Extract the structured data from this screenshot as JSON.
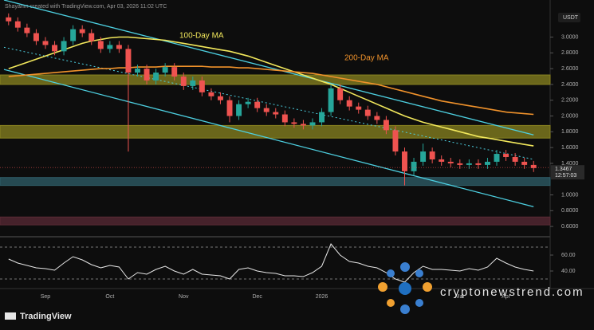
{
  "chart_data": {
    "type": "candlestick",
    "header": "Shayanm created with TradingView.com, Apr 03, 2026 11:02 UTC",
    "currency": "USDT",
    "categories": [
      null,
      null,
      null,
      null,
      "Sep",
      null,
      null,
      null,
      null,
      null,
      null,
      "Oct",
      null,
      null,
      null,
      null,
      null,
      null,
      null,
      "Nov",
      null,
      null,
      null,
      null,
      null,
      null,
      null,
      "Dec",
      null,
      null,
      null,
      null,
      null,
      null,
      "2026",
      null,
      null,
      null,
      null,
      null,
      null,
      null,
      null,
      null,
      null,
      null,
      null,
      null,
      null,
      "Mar",
      null,
      null,
      null,
      null,
      "Apr",
      null,
      null,
      null
    ],
    "open": [
      3.25,
      3.2,
      3.12,
      3.05,
      2.95,
      2.9,
      2.82,
      2.95,
      3.1,
      3.05,
      2.95,
      2.85,
      2.9,
      2.85,
      2.55,
      2.6,
      2.45,
      2.55,
      2.62,
      2.5,
      2.38,
      2.45,
      2.3,
      2.25,
      2.2,
      2.0,
      2.15,
      2.18,
      2.1,
      2.05,
      2.02,
      1.92,
      1.9,
      1.88,
      1.92,
      2.05,
      2.35,
      2.2,
      2.12,
      2.08,
      2.0,
      1.95,
      1.82,
      1.55,
      1.3,
      1.42,
      1.55,
      1.45,
      1.42,
      1.4,
      1.38,
      1.4,
      1.38,
      1.42,
      1.52,
      1.48,
      1.42,
      1.38
    ],
    "high": [
      3.3,
      3.25,
      3.17,
      3.1,
      3.0,
      2.95,
      3.0,
      3.15,
      3.15,
      3.1,
      3.0,
      2.95,
      2.95,
      2.9,
      2.65,
      2.65,
      2.6,
      2.67,
      2.67,
      2.55,
      2.5,
      2.5,
      2.35,
      2.3,
      2.25,
      2.2,
      2.23,
      2.23,
      2.15,
      2.1,
      2.07,
      1.97,
      1.95,
      1.97,
      2.1,
      2.4,
      2.4,
      2.25,
      2.17,
      2.13,
      2.05,
      2.0,
      1.87,
      1.6,
      1.47,
      1.65,
      1.6,
      1.5,
      1.47,
      1.45,
      1.45,
      1.45,
      1.47,
      1.57,
      1.57,
      1.53,
      1.47,
      1.43
    ],
    "low": [
      3.15,
      3.07,
      3.0,
      2.9,
      2.85,
      2.77,
      2.77,
      2.9,
      3.0,
      2.9,
      2.8,
      2.8,
      2.8,
      1.55,
      2.5,
      2.4,
      2.4,
      2.5,
      2.45,
      2.33,
      2.33,
      2.25,
      2.2,
      2.15,
      1.92,
      1.95,
      2.1,
      2.05,
      2.0,
      1.97,
      1.87,
      1.85,
      1.83,
      1.83,
      1.87,
      2.0,
      2.15,
      2.07,
      2.03,
      1.95,
      1.9,
      1.77,
      1.5,
      1.12,
      1.25,
      1.37,
      1.4,
      1.37,
      1.35,
      1.33,
      1.33,
      1.33,
      1.33,
      1.37,
      1.43,
      1.37,
      1.33,
      1.29
    ],
    "close": [
      3.2,
      3.12,
      3.05,
      2.95,
      2.9,
      2.82,
      2.95,
      3.1,
      3.05,
      2.95,
      2.85,
      2.9,
      2.85,
      2.55,
      2.6,
      2.45,
      2.55,
      2.62,
      2.5,
      2.38,
      2.45,
      2.3,
      2.25,
      2.2,
      2.0,
      2.15,
      2.18,
      2.1,
      2.05,
      2.02,
      1.92,
      1.9,
      1.88,
      1.92,
      2.05,
      2.35,
      2.2,
      2.12,
      2.08,
      2.0,
      1.95,
      1.82,
      1.55,
      1.3,
      1.42,
      1.55,
      1.45,
      1.42,
      1.4,
      1.38,
      1.4,
      1.38,
      1.42,
      1.52,
      1.48,
      1.42,
      1.38,
      1.34
    ],
    "up_color": "#26a69a",
    "down_color": "#ef5350",
    "ylim": [
      0.49,
      3.47
    ],
    "yticks": [
      {
        "value": 3.0,
        "label": "3.0000"
      },
      {
        "value": 2.8,
        "label": "2.8000"
      },
      {
        "value": 2.6,
        "label": "2.6000"
      },
      {
        "value": 2.4,
        "label": "2.4000"
      },
      {
        "value": 2.2,
        "label": "2.2000"
      },
      {
        "value": 2.0,
        "label": "2.0000"
      },
      {
        "value": 1.8,
        "label": "1.8000"
      },
      {
        "value": 1.6,
        "label": "1.6000"
      },
      {
        "value": 1.4,
        "label": "1.4000"
      },
      {
        "value": 1.0,
        "label": "1.0000"
      },
      {
        "value": 0.8,
        "label": "0.8000"
      },
      {
        "value": 0.6,
        "label": "0.6000"
      }
    ],
    "series": [
      {
        "name": "100-Day MA",
        "color": "#f2e85c",
        "values": [
          2.6,
          2.64,
          2.68,
          2.72,
          2.76,
          2.8,
          2.84,
          2.88,
          2.92,
          2.95,
          2.97,
          2.99,
          3.0,
          3.0,
          2.99,
          2.98,
          2.97,
          2.96,
          2.94,
          2.92,
          2.9,
          2.88,
          2.86,
          2.84,
          2.82,
          2.79,
          2.76,
          2.72,
          2.68,
          2.64,
          2.6,
          2.56,
          2.52,
          2.48,
          2.44,
          2.4,
          2.35,
          2.3,
          2.25,
          2.2,
          2.15,
          2.1,
          2.05,
          2.0,
          1.96,
          1.92,
          1.89,
          1.86,
          1.83,
          1.8,
          1.77,
          1.74,
          1.72,
          1.7,
          1.68,
          1.66,
          1.64,
          1.62
        ]
      },
      {
        "name": "200-Day MA",
        "color": "#f0922b",
        "values": [
          2.5,
          2.51,
          2.52,
          2.53,
          2.54,
          2.55,
          2.56,
          2.57,
          2.58,
          2.59,
          2.6,
          2.6,
          2.61,
          2.61,
          2.62,
          2.62,
          2.62,
          2.63,
          2.63,
          2.63,
          2.63,
          2.63,
          2.62,
          2.62,
          2.62,
          2.61,
          2.61,
          2.6,
          2.59,
          2.58,
          2.57,
          2.56,
          2.55,
          2.54,
          2.52,
          2.5,
          2.48,
          2.46,
          2.44,
          2.42,
          2.4,
          2.37,
          2.34,
          2.31,
          2.28,
          2.25,
          2.22,
          2.19,
          2.17,
          2.15,
          2.13,
          2.11,
          2.09,
          2.07,
          2.05,
          2.04,
          2.03,
          2.02
        ]
      }
    ],
    "zones": [
      {
        "from": 2.4,
        "to": 2.52,
        "color": "#8a8420"
      },
      {
        "from": 1.72,
        "to": 1.88,
        "color": "#8a8420"
      },
      {
        "from": 1.12,
        "to": 1.22,
        "color": "#2f5f6a"
      },
      {
        "from": 0.62,
        "to": 0.72,
        "color": "#5a2a35"
      }
    ],
    "trendlines": [
      {
        "from": [
          -0.5,
          3.47
        ],
        "to": [
          57,
          1.76
        ],
        "color": "#4dd0e1",
        "dash": false
      },
      {
        "from": [
          -0.5,
          2.59
        ],
        "to": [
          57,
          0.85
        ],
        "color": "#4dd0e1",
        "dash": false
      },
      {
        "from": [
          -0.5,
          2.87
        ],
        "to": [
          57,
          1.45
        ],
        "color": "#4dd0e1",
        "dash": true
      }
    ],
    "last_price": {
      "value": 1.3467,
      "label": "1.3467"
    },
    "countdown": "12:57:03",
    "rsi": {
      "color": "#e6e6e6",
      "values": [
        55,
        50,
        47,
        44,
        43,
        41,
        50,
        58,
        54,
        48,
        44,
        47,
        45,
        30,
        38,
        36,
        42,
        46,
        40,
        36,
        42,
        36,
        35,
        34,
        30,
        42,
        44,
        40,
        38,
        37,
        34,
        34,
        33,
        38,
        46,
        74,
        60,
        52,
        50,
        46,
        44,
        38,
        30,
        26,
        38,
        46,
        42,
        42,
        41,
        40,
        43,
        41,
        45,
        56,
        50,
        45,
        42,
        40
      ],
      "ylim": [
        23,
        80
      ],
      "yticks": [
        {
          "value": 60,
          "label": "60.00"
        },
        {
          "value": 40,
          "label": "40.00"
        }
      ],
      "levels": [
        70,
        30
      ]
    }
  },
  "branding": {
    "logo": "TradingView",
    "watermark": "cryptonewstrend.com"
  }
}
